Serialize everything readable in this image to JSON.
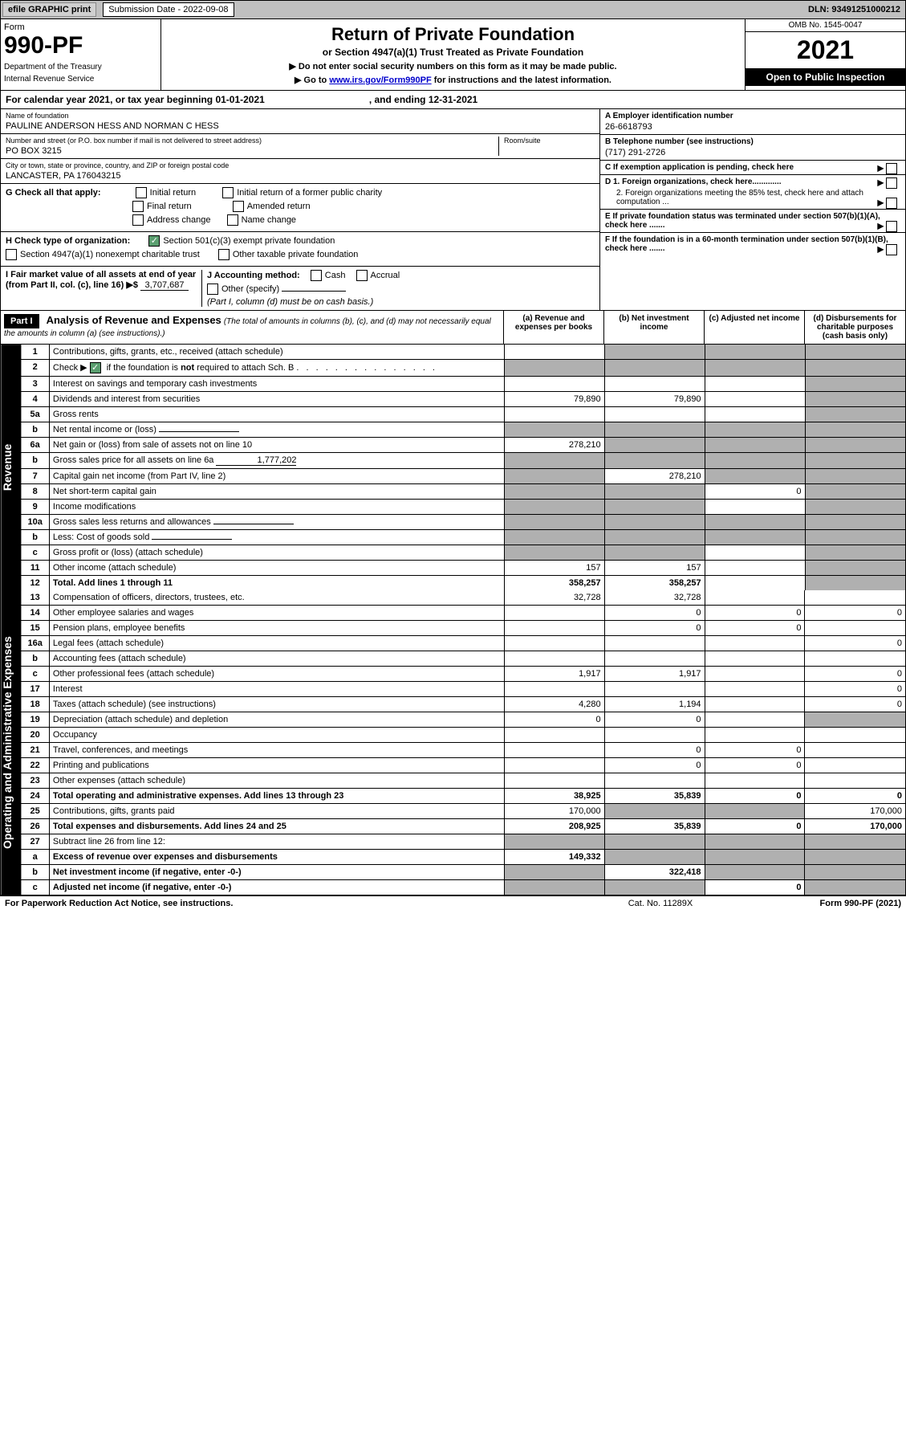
{
  "top_bar": {
    "efile_label": "efile GRAPHIC print",
    "submission_label": "Submission Date - 2022-09-08",
    "dln": "DLN: 93491251000212"
  },
  "header": {
    "form_word": "Form",
    "form_number": "990-PF",
    "dept1": "Department of the Treasury",
    "dept2": "Internal Revenue Service",
    "title": "Return of Private Foundation",
    "subtitle": "or Section 4947(a)(1) Trust Treated as Private Foundation",
    "instr1": "▶ Do not enter social security numbers on this form as it may be made public.",
    "instr2_pre": "▶ Go to ",
    "instr2_link": "www.irs.gov/Form990PF",
    "instr2_post": " for instructions and the latest information.",
    "omb": "OMB No. 1545-0047",
    "year": "2021",
    "open_public": "Open to Public Inspection"
  },
  "cal_year": {
    "text1": "For calendar year 2021, or tax year beginning 01-01-2021",
    "text2": ", and ending 12-31-2021"
  },
  "info": {
    "name_label": "Name of foundation",
    "name_value": "PAULINE ANDERSON HESS AND NORMAN C HESS",
    "addr_label": "Number and street (or P.O. box number if mail is not delivered to street address)",
    "addr_value": "PO BOX 3215",
    "room_label": "Room/suite",
    "city_label": "City or town, state or province, country, and ZIP or foreign postal code",
    "city_value": "LANCASTER, PA  176043215",
    "ein_label": "A Employer identification number",
    "ein_value": "26-6618793",
    "phone_label": "B Telephone number (see instructions)",
    "phone_value": "(717) 291-2726",
    "c_label": "C If exemption application is pending, check here",
    "d1_label": "D 1. Foreign organizations, check here.............",
    "d2_label": "2. Foreign organizations meeting the 85% test, check here and attach computation ...",
    "e_label": "E  If private foundation status was terminated under section 507(b)(1)(A), check here .......",
    "f_label": "F  If the foundation is in a 60-month termination under section 507(b)(1)(B), check here .......",
    "g_label": "G Check all that apply:",
    "g_initial": "Initial return",
    "g_initial_former": "Initial return of a former public charity",
    "g_final": "Final return",
    "g_amended": "Amended return",
    "g_address": "Address change",
    "g_name": "Name change",
    "h_label": "H Check type of organization:",
    "h_501c3": "Section 501(c)(3) exempt private foundation",
    "h_4947": "Section 4947(a)(1) nonexempt charitable trust",
    "h_other": "Other taxable private foundation",
    "i_label": "I Fair market value of all assets at end of year (from Part II, col. (c), line 16)",
    "i_value": "3,707,687",
    "j_label": "J Accounting method:",
    "j_cash": "Cash",
    "j_accrual": "Accrual",
    "j_other": "Other (specify)",
    "j_note": "(Part I, column (d) must be on cash basis.)"
  },
  "part1": {
    "label": "Part I",
    "title": "Analysis of Revenue and Expenses",
    "desc": "(The total of amounts in columns (b), (c), and (d) may not necessarily equal the amounts in column (a) (see instructions).)",
    "col_a": "(a)   Revenue and expenses per books",
    "col_b": "(b)   Net investment income",
    "col_c": "(c)   Adjusted net income",
    "col_d": "(d)   Disbursements for charitable purposes (cash basis only)",
    "side_revenue": "Revenue",
    "side_expenses": "Operating and Administrative Expenses"
  },
  "lines": [
    {
      "num": "1",
      "desc": "Contributions, gifts, grants, etc., received (attach schedule)",
      "a": "",
      "b": "shaded",
      "c": "shaded",
      "d": "shaded"
    },
    {
      "num": "2",
      "desc": "Check ▶ ☑ if the foundation is not required to attach Sch. B",
      "a": "shaded",
      "b": "shaded",
      "c": "shaded",
      "d": "shaded",
      "checked": true
    },
    {
      "num": "3",
      "desc": "Interest on savings and temporary cash investments",
      "a": "",
      "b": "",
      "c": "",
      "d": "shaded"
    },
    {
      "num": "4",
      "desc": "Dividends and interest from securities",
      "a": "79,890",
      "b": "79,890",
      "c": "",
      "d": "shaded"
    },
    {
      "num": "5a",
      "desc": "Gross rents",
      "a": "",
      "b": "",
      "c": "",
      "d": "shaded"
    },
    {
      "num": "b",
      "desc": "Net rental income or (loss)",
      "a": "shaded",
      "b": "shaded",
      "c": "shaded",
      "d": "shaded",
      "subline": true
    },
    {
      "num": "6a",
      "desc": "Net gain or (loss) from sale of assets not on line 10",
      "a": "278,210",
      "b": "shaded",
      "c": "shaded",
      "d": "shaded"
    },
    {
      "num": "b",
      "desc": "Gross sales price for all assets on line 6a",
      "a": "shaded",
      "b": "shaded",
      "c": "shaded",
      "d": "shaded",
      "subline": true,
      "inline_val": "1,777,202"
    },
    {
      "num": "7",
      "desc": "Capital gain net income (from Part IV, line 2)",
      "a": "shaded",
      "b": "278,210",
      "c": "shaded",
      "d": "shaded"
    },
    {
      "num": "8",
      "desc": "Net short-term capital gain",
      "a": "shaded",
      "b": "shaded",
      "c": "0",
      "d": "shaded"
    },
    {
      "num": "9",
      "desc": "Income modifications",
      "a": "shaded",
      "b": "shaded",
      "c": "",
      "d": "shaded"
    },
    {
      "num": "10a",
      "desc": "Gross sales less returns and allowances",
      "a": "shaded",
      "b": "shaded",
      "c": "shaded",
      "d": "shaded",
      "subline": true
    },
    {
      "num": "b",
      "desc": "Less: Cost of goods sold",
      "a": "shaded",
      "b": "shaded",
      "c": "shaded",
      "d": "shaded",
      "subline": true
    },
    {
      "num": "c",
      "desc": "Gross profit or (loss) (attach schedule)",
      "a": "shaded",
      "b": "shaded",
      "c": "",
      "d": "shaded"
    },
    {
      "num": "11",
      "desc": "Other income (attach schedule)",
      "a": "157",
      "b": "157",
      "c": "",
      "d": "shaded"
    },
    {
      "num": "12",
      "desc": "Total. Add lines 1 through 11",
      "a": "358,257",
      "b": "358,257",
      "c": "",
      "d": "shaded",
      "bold": true
    }
  ],
  "exp_lines": [
    {
      "num": "13",
      "desc": "Compensation of officers, directors, trustees, etc.",
      "a": "32,728",
      "b": "32,728",
      "c": "",
      "d": ""
    },
    {
      "num": "14",
      "desc": "Other employee salaries and wages",
      "a": "",
      "b": "0",
      "c": "0",
      "d": "0"
    },
    {
      "num": "15",
      "desc": "Pension plans, employee benefits",
      "a": "",
      "b": "0",
      "c": "0",
      "d": ""
    },
    {
      "num": "16a",
      "desc": "Legal fees (attach schedule)",
      "a": "",
      "b": "",
      "c": "",
      "d": "0"
    },
    {
      "num": "b",
      "desc": "Accounting fees (attach schedule)",
      "a": "",
      "b": "",
      "c": "",
      "d": ""
    },
    {
      "num": "c",
      "desc": "Other professional fees (attach schedule)",
      "a": "1,917",
      "b": "1,917",
      "c": "",
      "d": "0"
    },
    {
      "num": "17",
      "desc": "Interest",
      "a": "",
      "b": "",
      "c": "",
      "d": "0"
    },
    {
      "num": "18",
      "desc": "Taxes (attach schedule) (see instructions)",
      "a": "4,280",
      "b": "1,194",
      "c": "",
      "d": "0"
    },
    {
      "num": "19",
      "desc": "Depreciation (attach schedule) and depletion",
      "a": "0",
      "b": "0",
      "c": "",
      "d": "shaded"
    },
    {
      "num": "20",
      "desc": "Occupancy",
      "a": "",
      "b": "",
      "c": "",
      "d": ""
    },
    {
      "num": "21",
      "desc": "Travel, conferences, and meetings",
      "a": "",
      "b": "0",
      "c": "0",
      "d": ""
    },
    {
      "num": "22",
      "desc": "Printing and publications",
      "a": "",
      "b": "0",
      "c": "0",
      "d": ""
    },
    {
      "num": "23",
      "desc": "Other expenses (attach schedule)",
      "a": "",
      "b": "",
      "c": "",
      "d": ""
    },
    {
      "num": "24",
      "desc": "Total operating and administrative expenses. Add lines 13 through 23",
      "a": "38,925",
      "b": "35,839",
      "c": "0",
      "d": "0",
      "bold": true
    },
    {
      "num": "25",
      "desc": "Contributions, gifts, grants paid",
      "a": "170,000",
      "b": "shaded",
      "c": "shaded",
      "d": "170,000"
    },
    {
      "num": "26",
      "desc": "Total expenses and disbursements. Add lines 24 and 25",
      "a": "208,925",
      "b": "35,839",
      "c": "0",
      "d": "170,000",
      "bold": true
    },
    {
      "num": "27",
      "desc": "Subtract line 26 from line 12:",
      "a": "shaded",
      "b": "shaded",
      "c": "shaded",
      "d": "shaded"
    },
    {
      "num": "a",
      "desc": "Excess of revenue over expenses and disbursements",
      "a": "149,332",
      "b": "shaded",
      "c": "shaded",
      "d": "shaded",
      "bold": true
    },
    {
      "num": "b",
      "desc": "Net investment income (if negative, enter -0-)",
      "a": "shaded",
      "b": "322,418",
      "c": "shaded",
      "d": "shaded",
      "bold": true
    },
    {
      "num": "c",
      "desc": "Adjusted net income (if negative, enter -0-)",
      "a": "shaded",
      "b": "shaded",
      "c": "0",
      "d": "shaded",
      "bold": true
    }
  ],
  "footer": {
    "left": "For Paperwork Reduction Act Notice, see instructions.",
    "mid": "Cat. No. 11289X",
    "right": "Form 990-PF (2021)"
  }
}
